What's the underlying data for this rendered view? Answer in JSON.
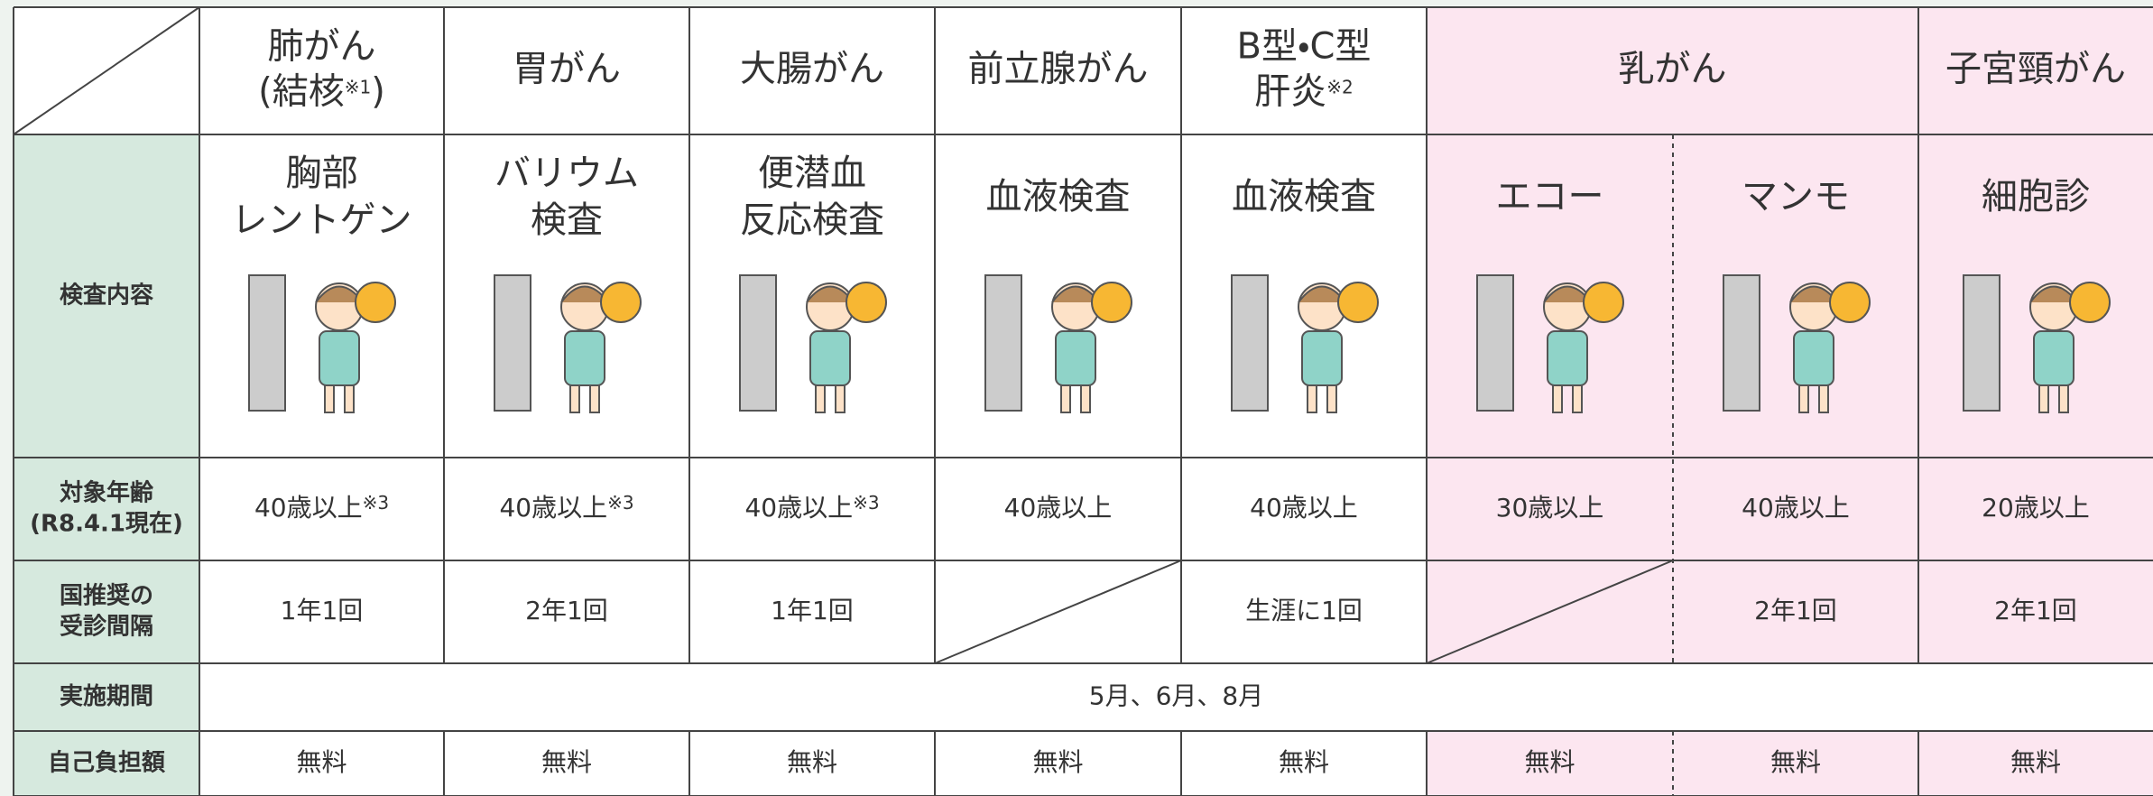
{
  "headers": [
    {
      "lines": [
        {
          "text": "肺がん"
        },
        {
          "text": "(結核",
          "note": "※1",
          "tail": ")"
        }
      ]
    },
    {
      "lines": [
        {
          "text": "胃がん"
        }
      ]
    },
    {
      "lines": [
        {
          "text": "大腸がん"
        }
      ]
    },
    {
      "lines": [
        {
          "text": "前立腺がん"
        }
      ]
    },
    {
      "lines": [
        {
          "text": "B型・C型"
        },
        {
          "text": "肝炎",
          "note": "※2"
        }
      ]
    },
    {
      "lines": [
        {
          "text": "乳がん"
        }
      ]
    },
    {
      "lines": [
        {
          "text": "子宮頸がん"
        }
      ]
    }
  ],
  "row_labels": {
    "exam": [
      "検査内容"
    ],
    "age": [
      "対象年齢",
      "(R8.4.1現在)"
    ],
    "interval": [
      "国推奨の",
      "受診間隔"
    ],
    "period": [
      "実施期間"
    ],
    "cost": [
      "自己負担額"
    ]
  },
  "exams": [
    [
      "胸部",
      "レントゲン"
    ],
    [
      "バリウム",
      "検査"
    ],
    [
      "便潜血",
      "反応検査"
    ],
    [
      "血液検査"
    ],
    [
      "血液検査"
    ],
    [
      "エコー"
    ],
    [
      "マンモ"
    ],
    [
      "細胞診"
    ]
  ],
  "ages": [
    {
      "text": "40歳以上",
      "note": "※3"
    },
    {
      "text": "40歳以上",
      "note": "※3"
    },
    {
      "text": "40歳以上",
      "note": "※3"
    },
    {
      "text": "40歳以上"
    },
    {
      "text": "40歳以上"
    },
    {
      "text": "30歳以上"
    },
    {
      "text": "40歳以上"
    },
    {
      "text": "20歳以上"
    }
  ],
  "intervals": [
    "1年1回",
    "2年1回",
    "1年1回",
    null,
    "生涯に1回",
    null,
    "2年1回",
    "2年1回"
  ],
  "period": "5月、6月、8月",
  "costs": [
    "無料",
    "無料",
    "無料",
    "無料",
    "無料",
    "無料",
    "無料",
    "無料"
  ]
}
